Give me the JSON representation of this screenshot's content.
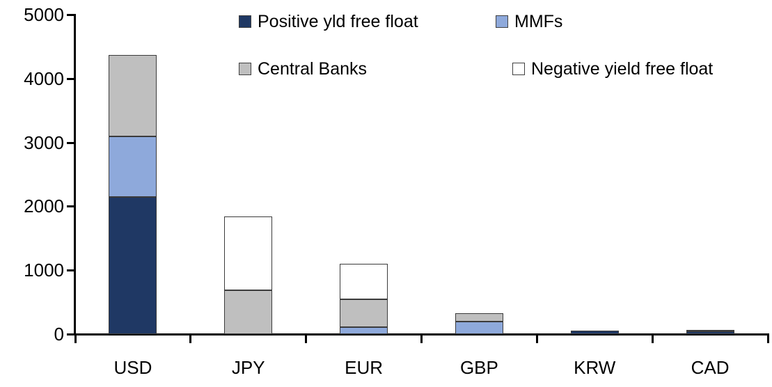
{
  "chart_data": {
    "type": "bar",
    "stacked": true,
    "title": "",
    "xlabel": "",
    "ylabel": "",
    "categories": [
      "USD",
      "JPY",
      "EUR",
      "GBP",
      "KRW",
      "CAD"
    ],
    "series": [
      {
        "name": "Positive yld free float",
        "color": "#1F3864",
        "values": [
          2150,
          0,
          0,
          0,
          50,
          40
        ]
      },
      {
        "name": "MMFs",
        "color": "#8EA9DB",
        "values": [
          940,
          0,
          110,
          200,
          0,
          0
        ]
      },
      {
        "name": "Central Banks",
        "color": "#BFBFBF",
        "values": [
          1280,
          690,
          430,
          130,
          0,
          25
        ]
      },
      {
        "name": "Negative yield free float",
        "color": "#FFFFFF",
        "values": [
          0,
          1150,
          560,
          0,
          0,
          0
        ]
      }
    ],
    "totals": [
      4370,
      1840,
      1100,
      330,
      50,
      65
    ],
    "ylim": [
      0,
      5000
    ],
    "yticks": [
      0,
      1000,
      2000,
      3000,
      4000,
      5000
    ],
    "grid": false,
    "legend_position": "top",
    "axis_color": "#000000",
    "bar_border_color": "#3b3b3b",
    "text_color": "#000000"
  }
}
